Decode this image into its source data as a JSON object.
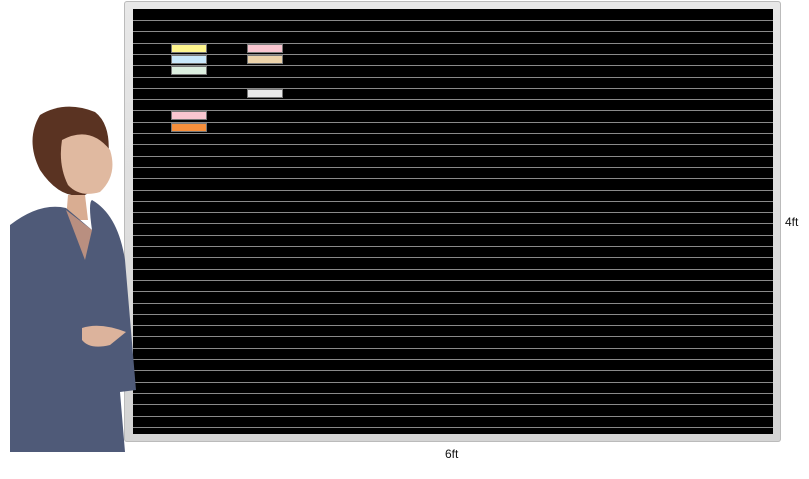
{
  "board": {
    "surface_color": "#000000",
    "line_color": "#8a8a8a",
    "frame_color": "#d8d8d8",
    "cards": [
      {
        "color": "#fff68f",
        "row": 2,
        "col": 0
      },
      {
        "color": "#f8c6d0",
        "row": 2,
        "col": 1
      },
      {
        "color": "#c9e8fa",
        "row": 3,
        "col": 0
      },
      {
        "color": "#ecd3aa",
        "row": 3,
        "col": 1
      },
      {
        "color": "#dcefdf",
        "row": 4,
        "col": 0
      },
      {
        "color": "#e8e8e8",
        "row": 6,
        "col": 1
      },
      {
        "color": "#f8c6d0",
        "row": 8,
        "col": 0
      },
      {
        "color": "#f68f3c",
        "row": 9,
        "col": 0
      }
    ]
  },
  "dimensions": {
    "height_label": "4ft",
    "width_label": "6ft"
  }
}
